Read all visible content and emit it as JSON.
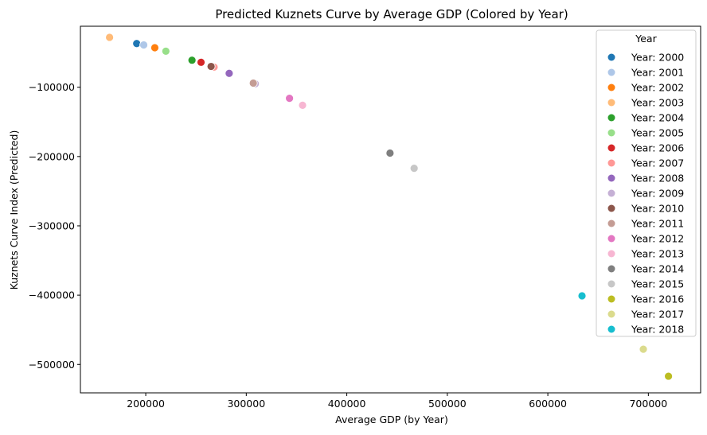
{
  "chart_data": {
    "type": "scatter",
    "title": "Predicted Kuznets Curve by Average GDP (Colored by Year)",
    "xlabel": "Average GDP (by Year)",
    "ylabel": "Kuznets Curve Index (Predicted)",
    "xlim": [
      135000,
      752000
    ],
    "ylim": [
      -541000,
      -12000
    ],
    "xticks": [
      200000,
      300000,
      400000,
      500000,
      600000,
      700000
    ],
    "xtick_labels": [
      "200000",
      "300000",
      "400000",
      "500000",
      "600000",
      "700000"
    ],
    "yticks": [
      -100000,
      -200000,
      -300000,
      -400000,
      -500000
    ],
    "ytick_labels": [
      "−100000",
      "−200000",
      "−300000",
      "−400000",
      "−500000"
    ],
    "grid": false,
    "legend": {
      "title": "Year",
      "placement": "top-right"
    },
    "series": [
      {
        "name": "Year: 2000",
        "color": "#1f77b4",
        "points": [
          [
            191000,
            -37000
          ]
        ]
      },
      {
        "name": "Year: 2001",
        "color": "#aec7e8",
        "points": [
          [
            198000,
            -39000
          ]
        ]
      },
      {
        "name": "Year: 2002",
        "color": "#ff7f0e",
        "points": [
          [
            209000,
            -43000
          ]
        ]
      },
      {
        "name": "Year: 2003",
        "color": "#ffbb78",
        "points": [
          [
            164000,
            -28000
          ]
        ]
      },
      {
        "name": "Year: 2004",
        "color": "#2ca02c",
        "points": [
          [
            246000,
            -61000
          ]
        ]
      },
      {
        "name": "Year: 2005",
        "color": "#98df8a",
        "points": [
          [
            220000,
            -48000
          ]
        ]
      },
      {
        "name": "Year: 2006",
        "color": "#d62728",
        "points": [
          [
            255000,
            -64000
          ]
        ]
      },
      {
        "name": "Year: 2007",
        "color": "#ff9896",
        "points": [
          [
            268000,
            -71000
          ]
        ]
      },
      {
        "name": "Year: 2008",
        "color": "#9467bd",
        "points": [
          [
            283000,
            -80000
          ]
        ]
      },
      {
        "name": "Year: 2009",
        "color": "#c5b0d5",
        "points": [
          [
            309000,
            -95000
          ]
        ]
      },
      {
        "name": "Year: 2010",
        "color": "#8c564b",
        "points": [
          [
            265000,
            -70000
          ]
        ]
      },
      {
        "name": "Year: 2011",
        "color": "#c49c94",
        "points": [
          [
            307000,
            -94000
          ]
        ]
      },
      {
        "name": "Year: 2012",
        "color": "#e377c2",
        "points": [
          [
            343000,
            -116000
          ]
        ]
      },
      {
        "name": "Year: 2013",
        "color": "#f7b6d2",
        "points": [
          [
            356000,
            -126000
          ]
        ]
      },
      {
        "name": "Year: 2014",
        "color": "#7f7f7f",
        "points": [
          [
            443000,
            -195000
          ]
        ]
      },
      {
        "name": "Year: 2015",
        "color": "#c7c7c7",
        "points": [
          [
            467000,
            -217000
          ]
        ]
      },
      {
        "name": "Year: 2016",
        "color": "#bcbd22",
        "points": [
          [
            720000,
            -517000
          ]
        ]
      },
      {
        "name": "Year: 2017",
        "color": "#dbdb8d",
        "points": [
          [
            695000,
            -478000
          ]
        ]
      },
      {
        "name": "Year: 2018",
        "color": "#17becf",
        "points": [
          [
            634000,
            -401000
          ]
        ]
      }
    ]
  }
}
